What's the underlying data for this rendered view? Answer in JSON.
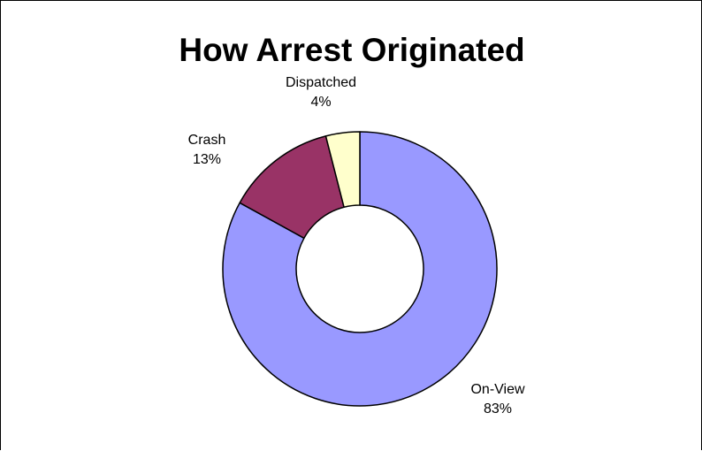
{
  "chart_data": {
    "type": "pie",
    "variant": "donut",
    "title": "How Arrest Originated",
    "slices": [
      {
        "label": "On-View",
        "value": 83,
        "value_label": "83%",
        "color": "#9999ff"
      },
      {
        "label": "Crash",
        "value": 13,
        "value_label": "13%",
        "color": "#993366"
      },
      {
        "label": "Dispatched",
        "value": 4,
        "value_label": "4%",
        "color": "#ffffcc"
      }
    ],
    "legend": "none",
    "start_angle_deg": 0,
    "direction": "clockwise"
  }
}
